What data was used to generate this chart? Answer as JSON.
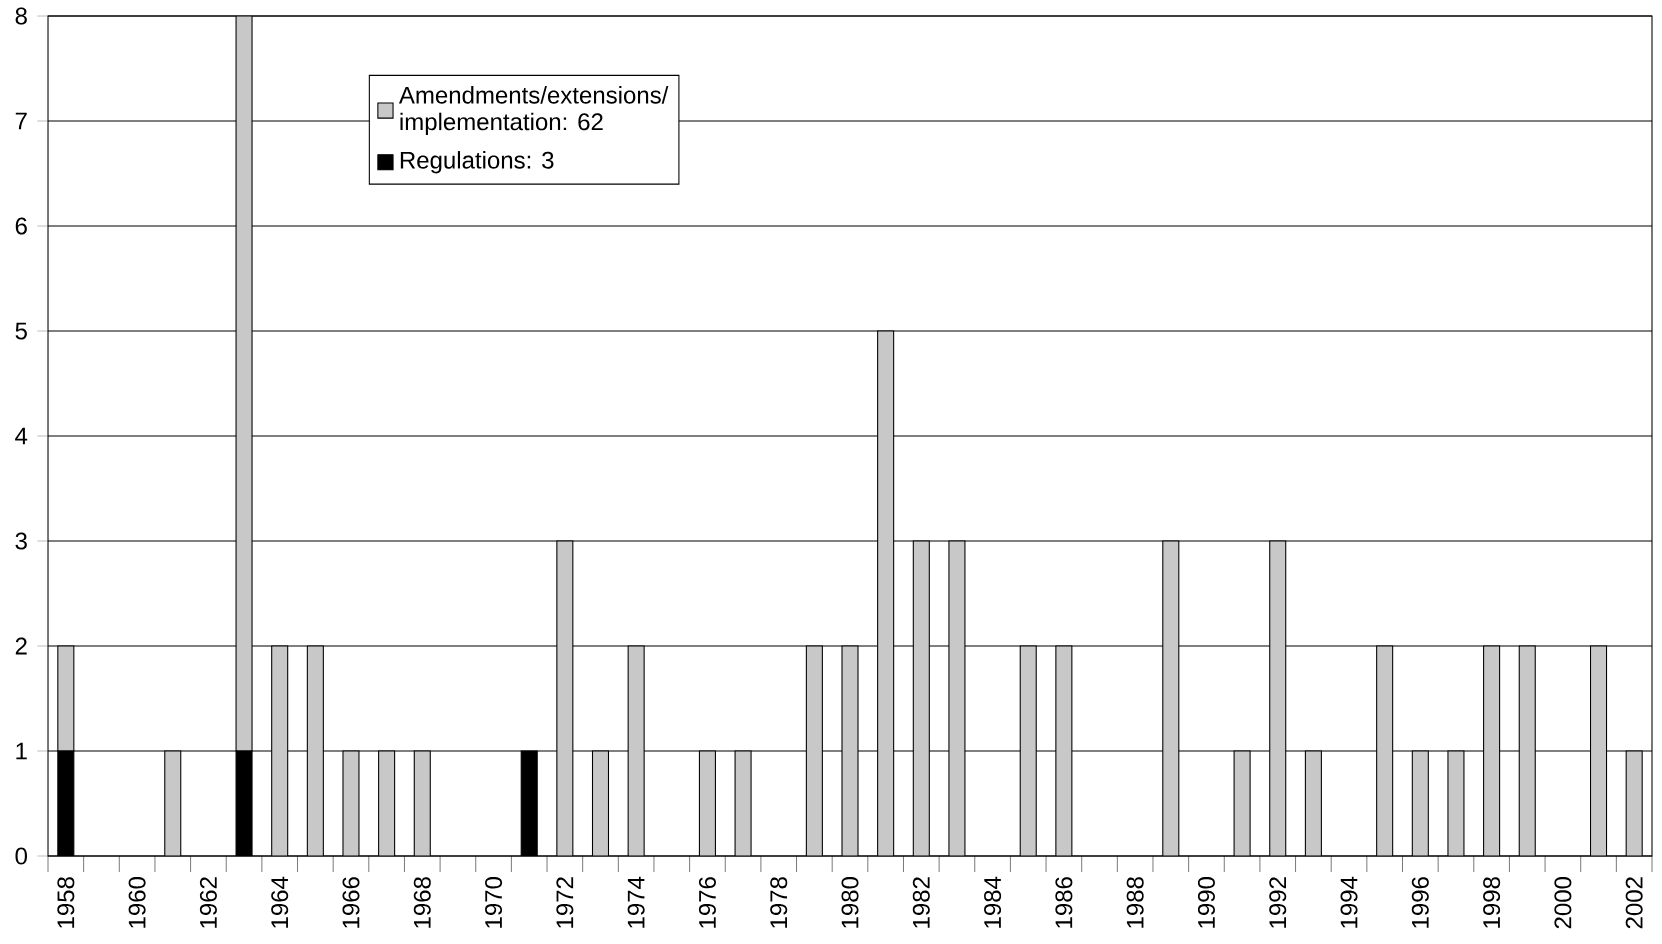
{
  "chart_data": {
    "type": "bar",
    "stacked": true,
    "categories": [
      "1958",
      null,
      "1960",
      null,
      "1962",
      null,
      "1964",
      null,
      "1966",
      null,
      "1968",
      null,
      "1970",
      null,
      "1972",
      null,
      "1974",
      null,
      "1976",
      null,
      "1978",
      null,
      "1980",
      null,
      "1982",
      null,
      "1984",
      null,
      "1986",
      null,
      "1988",
      null,
      "1990",
      null,
      "1992",
      null,
      "1994",
      null,
      "1996",
      null,
      "1998",
      null,
      "2000",
      null,
      "2002"
    ],
    "series": [
      {
        "name": "Regulations: 3",
        "color": "#000000",
        "values": [
          1,
          0,
          0,
          0,
          0,
          1,
          0,
          0,
          0,
          0,
          0,
          0,
          0,
          1,
          0,
          0,
          0,
          0,
          0,
          0,
          0,
          0,
          0,
          0,
          0,
          0,
          0,
          0,
          0,
          0,
          0,
          0,
          0,
          0,
          0,
          0,
          0,
          0,
          0,
          0,
          0,
          0,
          0,
          0,
          0
        ]
      },
      {
        "name": "Amendments/extensions/ implementation: 62",
        "color": "#c8c8c8",
        "values": [
          1,
          0,
          0,
          1,
          0,
          7,
          2,
          2,
          1,
          1,
          1,
          0,
          0,
          0,
          3,
          1,
          2,
          0,
          1,
          1,
          0,
          2,
          2,
          5,
          3,
          3,
          0,
          2,
          2,
          0,
          0,
          3,
          0,
          1,
          3,
          1,
          0,
          2,
          1,
          1,
          2,
          2,
          0,
          2,
          1
        ]
      }
    ],
    "ylim": [
      0,
      8
    ],
    "yticks": [
      0,
      1,
      2,
      3,
      4,
      5,
      6,
      7,
      8
    ],
    "grid": "y",
    "legend": "top left"
  }
}
